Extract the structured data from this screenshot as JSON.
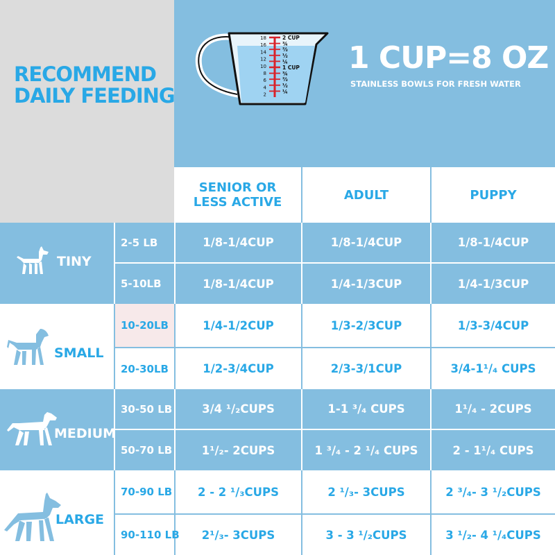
{
  "title": {
    "line1": "RECOMMEND",
    "line2": "DAILY FEEDING"
  },
  "header": {
    "headline": "1 CUP=8 OZ",
    "subline": "STAINLESS BOWLS FOR FRESH WATER"
  },
  "cup": {
    "left_marks": [
      "18",
      "16",
      "14",
      "12",
      "10",
      "8",
      "6",
      "4",
      "2"
    ],
    "right_marks": [
      "2 CUP",
      "¾",
      "⅔",
      "½",
      "¼",
      "1 CUP",
      "¾",
      "⅔",
      "½",
      "¼"
    ]
  },
  "columns": [
    "SENIOR OR\nLESS ACTIVE",
    "ADULT",
    "PUPPY"
  ],
  "groups": [
    {
      "name": "TINY",
      "rows": [
        {
          "weight": "2-5 LB",
          "values": [
            "1/8-1/4CUP",
            "1/8-1/4CUP",
            "1/8-1/4CUP"
          ]
        },
        {
          "weight": "5-10LB",
          "values": [
            "1/8-1/4CUP",
            "1/4-1/3CUP",
            "1/4-1/3CUP"
          ]
        }
      ]
    },
    {
      "name": "SMALL",
      "rows": [
        {
          "weight": "10-20LB",
          "values": [
            "1/4-1/2CUP",
            "1/3-2/3CUP",
            "1/3-3/4CUP"
          ]
        },
        {
          "weight": "20-30LB",
          "values": [
            "1/2-3/4CUP",
            "2/3-3/1CUP",
            "3/4-1¹/₄ CUPS"
          ]
        }
      ]
    },
    {
      "name": "MEDIUM",
      "rows": [
        {
          "weight": "30-50 LB",
          "values": [
            "3/4 ¹/₂CUPS",
            "1-1 ³/₄ CUPS",
            "1¹/₄ - 2CUPS"
          ]
        },
        {
          "weight": "50-70 LB",
          "values": [
            "1¹/₂- 2CUPS",
            "1 ³/₄ - 2 ¹/₄ CUPS",
            "2 - 1¹/₄ CUPS"
          ]
        }
      ]
    },
    {
      "name": "LARGE",
      "rows": [
        {
          "weight": "70-90 LB",
          "values": [
            "2 - 2 ¹/₃CUPS",
            "2 ¹/₃- 3CUPS",
            "2 ³/₄- 3 ¹/₂CUPS"
          ]
        },
        {
          "weight": "90-110 LB",
          "values": [
            "2¹/₃- 3CUPS",
            "3 - 3 ¹/₂CUPS",
            "3 ¹/₂- 4 ¹/₄CUPS"
          ]
        }
      ]
    }
  ],
  "colors": {
    "blue": "#84bee0",
    "accent": "#29a8e6",
    "grey": "#dcdcdc",
    "marks": "#d9232a"
  }
}
